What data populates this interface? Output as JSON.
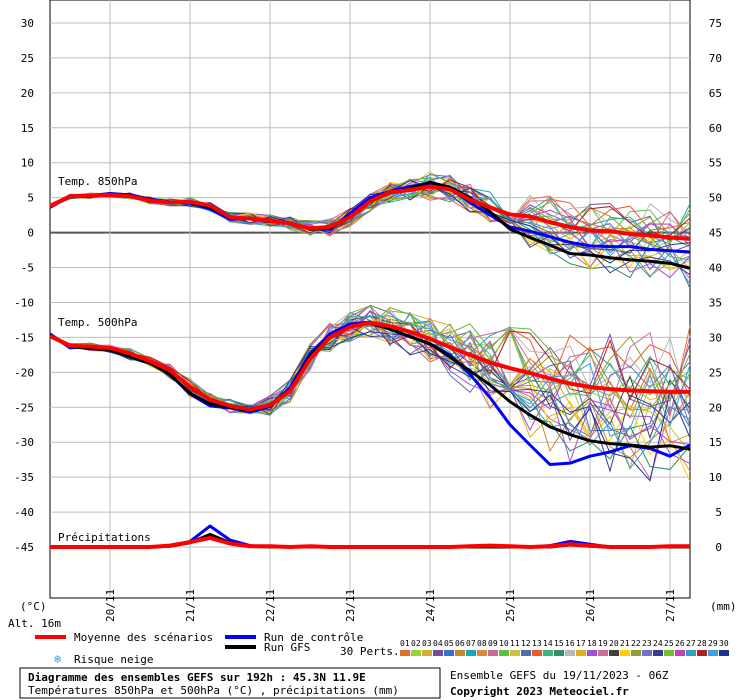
{
  "chart_data": {
    "type": "line",
    "title": "Diagramme des ensembles GEFS sur 192h : 45.3N 11.9E",
    "subtitle": "Températures 850hPa et 500hPa (°C) , précipitations (mm)",
    "run_info": "Ensemble GEFS du 19/11/2023 - 06Z",
    "copyright": "Copyright 2023 Meteociel.fr",
    "altitude": "Alt. 16m",
    "left_unit": "(°C)",
    "right_unit": "(mm)",
    "left_ticks": [
      "30",
      "25",
      "20",
      "15",
      "10",
      "5",
      "0",
      "-5",
      "-10",
      "-15",
      "-20",
      "-25",
      "-30",
      "-35",
      "-40",
      "-45"
    ],
    "right_ticks": [
      "75",
      "70",
      "65",
      "60",
      "55",
      "50",
      "45",
      "40",
      "35",
      "30",
      "25",
      "20",
      "15",
      "10",
      "5",
      "0"
    ],
    "x_labels": [
      "20/11",
      "21/11",
      "22/11",
      "23/11",
      "24/11",
      "25/11",
      "26/11",
      "27/11"
    ],
    "ylim_temp": [
      -45,
      30
    ],
    "ylim_precip": [
      0,
      75
    ],
    "panel_labels": {
      "t850": "Temp. 850hPa",
      "t500": "Temp. 500hPa",
      "precip": "Précipitations"
    },
    "legend": {
      "mean": "Moyenne des scénarios",
      "control": "Run de contrôle",
      "gfs": "Run GFS",
      "snow": "Risque neige",
      "perts": "30 Perts.",
      "member_labels": [
        "01",
        "02",
        "03",
        "04",
        "05",
        "06",
        "07",
        "08",
        "09",
        "10",
        "11",
        "12",
        "13",
        "14",
        "15",
        "16",
        "17",
        "18",
        "19",
        "20",
        "21",
        "22",
        "23",
        "24",
        "25",
        "26",
        "27",
        "28",
        "29",
        "30"
      ]
    },
    "colors": {
      "mean": "#ff0000",
      "control": "#0000ff",
      "gfs": "#000000",
      "snow": "#3399ff",
      "members": [
        "#e0702a",
        "#9ad13a",
        "#d4b030",
        "#7a4aa0",
        "#3a6fd0",
        "#c9892a",
        "#19a6b0",
        "#d88a3a",
        "#c56a99",
        "#5fbf3a",
        "#d0c040",
        "#4f6fa8",
        "#ef5a2a",
        "#3fb37f",
        "#2f8f5f",
        "#b8b8b8",
        "#dfaf20",
        "#a050d0",
        "#d06aa0",
        "#404040",
        "#ffd000",
        "#8f9f2f",
        "#7070d0",
        "#3a3a8a",
        "#70c030",
        "#c040c0",
        "#30a0c0",
        "#b02020",
        "#40a0e0",
        "#203090"
      ]
    },
    "x": [
      0,
      6,
      12,
      18,
      24,
      30,
      36,
      42,
      48,
      54,
      60,
      66,
      72,
      78,
      84,
      90,
      96,
      102,
      108,
      114,
      120,
      126,
      132,
      138,
      144,
      150,
      156,
      162,
      168,
      174,
      180,
      186,
      192
    ],
    "series": [
      {
        "name": "Moyenne des scénarios",
        "panel": "t850",
        "values": [
          3.8,
          5.2,
          5.3,
          5.4,
          5.2,
          4.6,
          4.3,
          4.4,
          3.9,
          2.2,
          2.0,
          1.7,
          1.3,
          0.6,
          0.8,
          2.2,
          4.5,
          5.8,
          6.1,
          6.6,
          6.2,
          4.7,
          3.6,
          2.6,
          2.3,
          1.5,
          0.8,
          0.3,
          0.2,
          -0.2,
          -0.4,
          -0.7,
          -0.9
        ]
      },
      {
        "name": "Run de contrôle",
        "panel": "t850",
        "values": [
          3.6,
          5.2,
          5.3,
          5.6,
          5.4,
          4.8,
          4.4,
          4.2,
          3.4,
          1.9,
          2.1,
          1.7,
          1.3,
          0.6,
          0.5,
          2.7,
          5.0,
          5.9,
          6.6,
          7.0,
          6.4,
          4.3,
          2.5,
          0.8,
          0.2,
          -0.6,
          -1.4,
          -1.9,
          -2.0,
          -2.0,
          -2.4,
          -2.6,
          -2.8
        ]
      },
      {
        "name": "Run GFS",
        "panel": "t850",
        "values": [
          3.8,
          5.1,
          5.2,
          5.5,
          5.3,
          4.7,
          4.3,
          4.3,
          3.6,
          2.2,
          2.0,
          1.6,
          1.3,
          0.5,
          0.6,
          2.3,
          4.4,
          5.7,
          6.3,
          7.2,
          6.5,
          5.0,
          3.0,
          0.5,
          -0.7,
          -1.8,
          -3.0,
          -3.2,
          -3.6,
          -3.9,
          -4.1,
          -4.4,
          -5.1
        ]
      },
      {
        "name": "Moyenne des scénarios",
        "panel": "t500",
        "values": [
          -14.8,
          -16.2,
          -16.3,
          -16.5,
          -17.3,
          -18.4,
          -19.7,
          -22.1,
          -23.9,
          -24.8,
          -25.3,
          -24.7,
          -22.7,
          -18.1,
          -15.0,
          -13.5,
          -12.9,
          -13.4,
          -14.2,
          -15.2,
          -16.4,
          -17.5,
          -18.6,
          -19.4,
          -20.1,
          -20.9,
          -21.6,
          -22.1,
          -22.4,
          -22.6,
          -22.7,
          -22.8,
          -22.8
        ]
      },
      {
        "name": "Run de contrôle",
        "panel": "t500",
        "values": [
          -14.5,
          -16.5,
          -16.3,
          -16.6,
          -17.5,
          -18.7,
          -20.3,
          -23.1,
          -24.8,
          -25.1,
          -25.7,
          -24.9,
          -22.2,
          -17.3,
          -14.5,
          -13.1,
          -12.8,
          -13.7,
          -14.9,
          -15.9,
          -17.5,
          -20.3,
          -23.6,
          -27.5,
          -30.4,
          -33.2,
          -33.0,
          -32.0,
          -31.4,
          -30.5,
          -30.9,
          -32.0,
          -30.4
        ]
      },
      {
        "name": "Run GFS",
        "panel": "t500",
        "values": [
          -14.7,
          -16.3,
          -16.6,
          -16.8,
          -17.8,
          -18.7,
          -20.3,
          -23.0,
          -24.5,
          -25.0,
          -25.5,
          -24.6,
          -22.6,
          -17.7,
          -14.9,
          -13.5,
          -13.0,
          -13.8,
          -14.9,
          -15.9,
          -17.8,
          -19.8,
          -21.8,
          -24.2,
          -26.1,
          -27.8,
          -28.9,
          -29.8,
          -30.2,
          -30.4,
          -30.7,
          -30.5,
          -31.0
        ]
      },
      {
        "name": "Moyenne des scénarios",
        "panel": "precip",
        "values": [
          0,
          0,
          0,
          0,
          0,
          0,
          0.2,
          0.7,
          1.3,
          0.5,
          0.1,
          0.1,
          0,
          0.1,
          0,
          0,
          0,
          0,
          0,
          0,
          0,
          0.1,
          0.2,
          0.1,
          0,
          0.1,
          0.4,
          0.2,
          0,
          0,
          0,
          0.1,
          0.1
        ]
      },
      {
        "name": "Run de contrôle",
        "panel": "precip",
        "values": [
          0,
          0,
          0,
          0,
          0,
          0,
          0.1,
          0.8,
          3.0,
          1.0,
          0.2,
          0,
          0,
          0,
          0,
          0,
          0,
          0,
          0,
          0,
          0,
          0,
          0,
          0,
          0,
          0.2,
          0.8,
          0.4,
          0,
          0,
          0,
          0,
          0
        ]
      },
      {
        "name": "Run GFS",
        "panel": "precip",
        "values": [
          0,
          0,
          0,
          0,
          0,
          0,
          0.1,
          0.6,
          1.8,
          0.6,
          0.1,
          0,
          0,
          0,
          0,
          0,
          0,
          0,
          0,
          0,
          0,
          0,
          0,
          0,
          0,
          0,
          0.3,
          0.1,
          0,
          0,
          0,
          0,
          0
        ]
      }
    ]
  }
}
